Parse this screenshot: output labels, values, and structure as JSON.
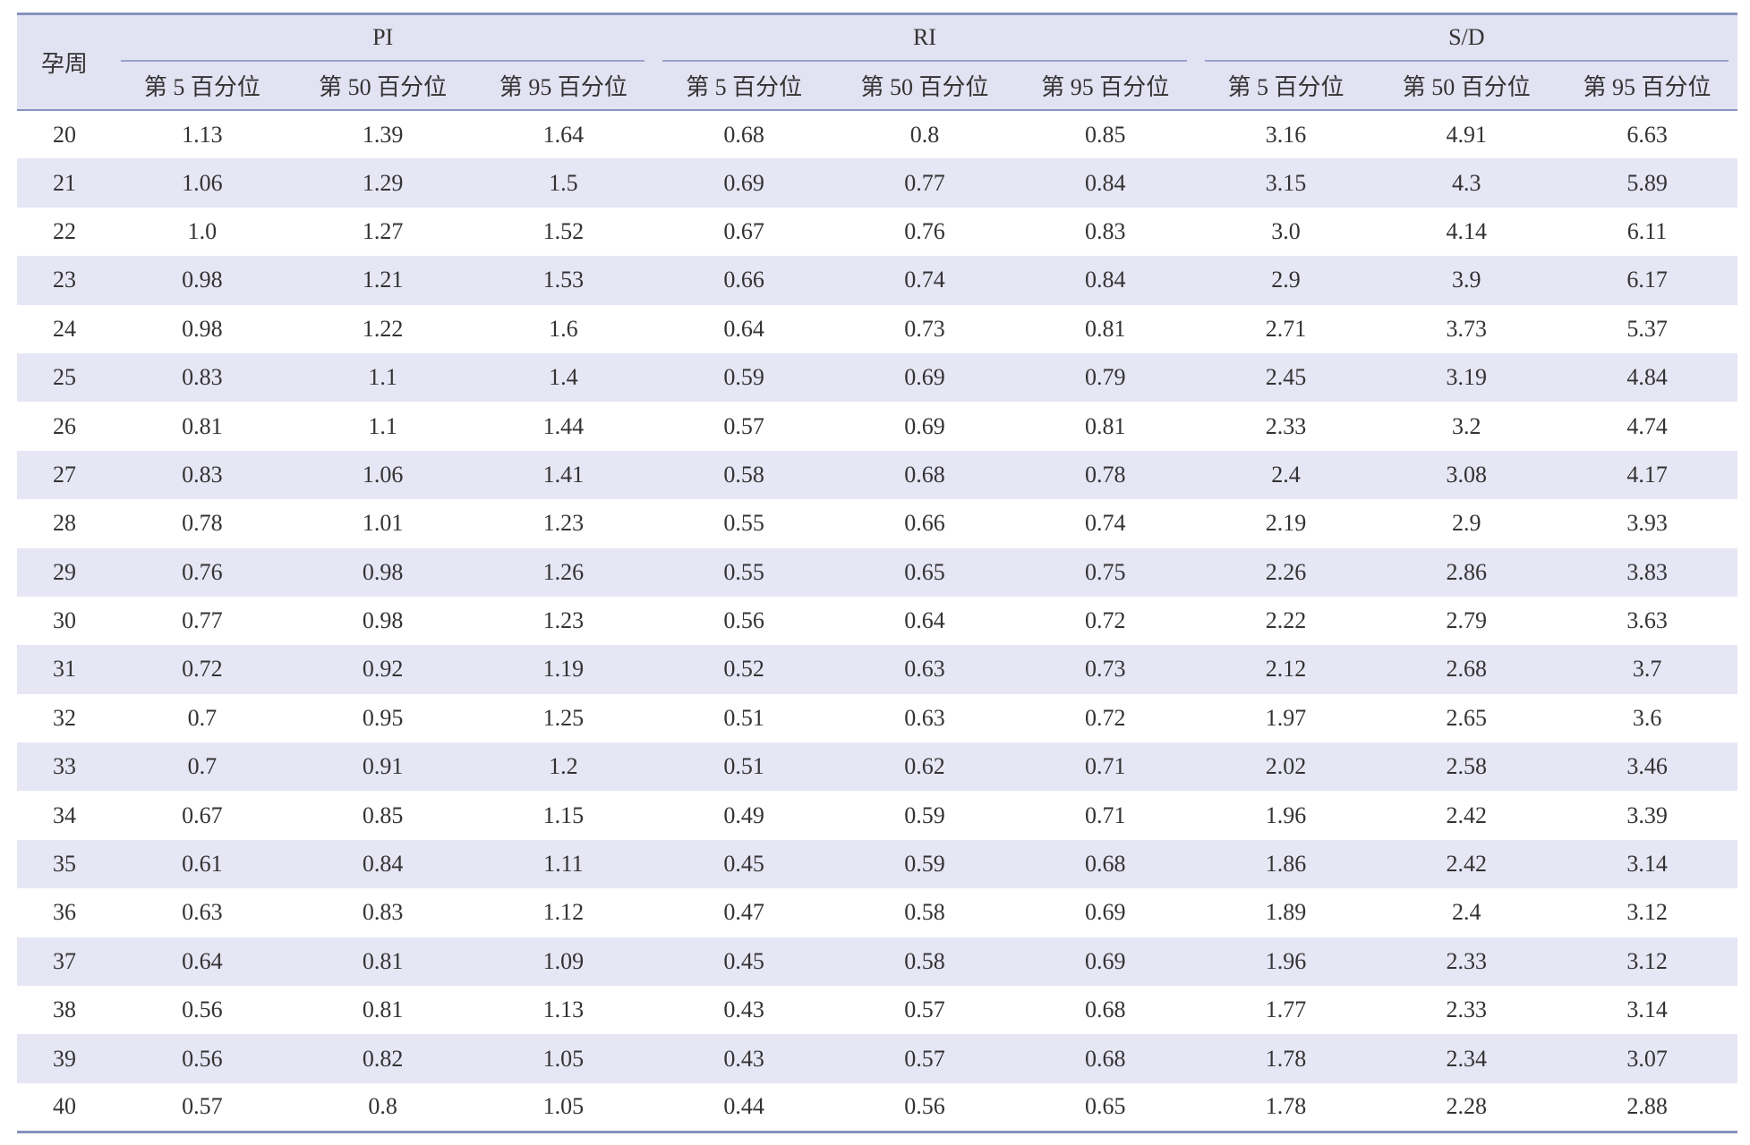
{
  "table": {
    "row_header": "孕周",
    "groups": [
      {
        "name": "PI",
        "columns": [
          "第 5 百分位",
          "第 50 百分位",
          "第 95 百分位"
        ]
      },
      {
        "name": "RI",
        "columns": [
          "第 5 百分位",
          "第 50 百分位",
          "第 95 百分位"
        ]
      },
      {
        "name": "S/D",
        "columns": [
          "第 5 百分位",
          "第 50 百分位",
          "第 95 百分位"
        ]
      }
    ],
    "rows": [
      [
        "20",
        "1.13",
        "1.39",
        "1.64",
        "0.68",
        "0.8",
        "0.85",
        "3.16",
        "4.91",
        "6.63"
      ],
      [
        "21",
        "1.06",
        "1.29",
        "1.5",
        "0.69",
        "0.77",
        "0.84",
        "3.15",
        "4.3",
        "5.89"
      ],
      [
        "22",
        "1.0",
        "1.27",
        "1.52",
        "0.67",
        "0.76",
        "0.83",
        "3.0",
        "4.14",
        "6.11"
      ],
      [
        "23",
        "0.98",
        "1.21",
        "1.53",
        "0.66",
        "0.74",
        "0.84",
        "2.9",
        "3.9",
        "6.17"
      ],
      [
        "24",
        "0.98",
        "1.22",
        "1.6",
        "0.64",
        "0.73",
        "0.81",
        "2.71",
        "3.73",
        "5.37"
      ],
      [
        "25",
        "0.83",
        "1.1",
        "1.4",
        "0.59",
        "0.69",
        "0.79",
        "2.45",
        "3.19",
        "4.84"
      ],
      [
        "26",
        "0.81",
        "1.1",
        "1.44",
        "0.57",
        "0.69",
        "0.81",
        "2.33",
        "3.2",
        "4.74"
      ],
      [
        "27",
        "0.83",
        "1.06",
        "1.41",
        "0.58",
        "0.68",
        "0.78",
        "2.4",
        "3.08",
        "4.17"
      ],
      [
        "28",
        "0.78",
        "1.01",
        "1.23",
        "0.55",
        "0.66",
        "0.74",
        "2.19",
        "2.9",
        "3.93"
      ],
      [
        "29",
        "0.76",
        "0.98",
        "1.26",
        "0.55",
        "0.65",
        "0.75",
        "2.26",
        "2.86",
        "3.83"
      ],
      [
        "30",
        "0.77",
        "0.98",
        "1.23",
        "0.56",
        "0.64",
        "0.72",
        "2.22",
        "2.79",
        "3.63"
      ],
      [
        "31",
        "0.72",
        "0.92",
        "1.19",
        "0.52",
        "0.63",
        "0.73",
        "2.12",
        "2.68",
        "3.7"
      ],
      [
        "32",
        "0.7",
        "0.95",
        "1.25",
        "0.51",
        "0.63",
        "0.72",
        "1.97",
        "2.65",
        "3.6"
      ],
      [
        "33",
        "0.7",
        "0.91",
        "1.2",
        "0.51",
        "0.62",
        "0.71",
        "2.02",
        "2.58",
        "3.46"
      ],
      [
        "34",
        "0.67",
        "0.85",
        "1.15",
        "0.49",
        "0.59",
        "0.71",
        "1.96",
        "2.42",
        "3.39"
      ],
      [
        "35",
        "0.61",
        "0.84",
        "1.11",
        "0.45",
        "0.59",
        "0.68",
        "1.86",
        "2.42",
        "3.14"
      ],
      [
        "36",
        "0.63",
        "0.83",
        "1.12",
        "0.47",
        "0.58",
        "0.69",
        "1.89",
        "2.4",
        "3.12"
      ],
      [
        "37",
        "0.64",
        "0.81",
        "1.09",
        "0.45",
        "0.58",
        "0.69",
        "1.96",
        "2.33",
        "3.12"
      ],
      [
        "38",
        "0.56",
        "0.81",
        "1.13",
        "0.43",
        "0.57",
        "0.68",
        "1.77",
        "2.33",
        "3.14"
      ],
      [
        "39",
        "0.56",
        "0.82",
        "1.05",
        "0.43",
        "0.57",
        "0.68",
        "1.78",
        "2.34",
        "3.07"
      ],
      [
        "40",
        "0.57",
        "0.8",
        "1.05",
        "0.44",
        "0.56",
        "0.65",
        "1.78",
        "2.28",
        "2.88"
      ]
    ]
  }
}
